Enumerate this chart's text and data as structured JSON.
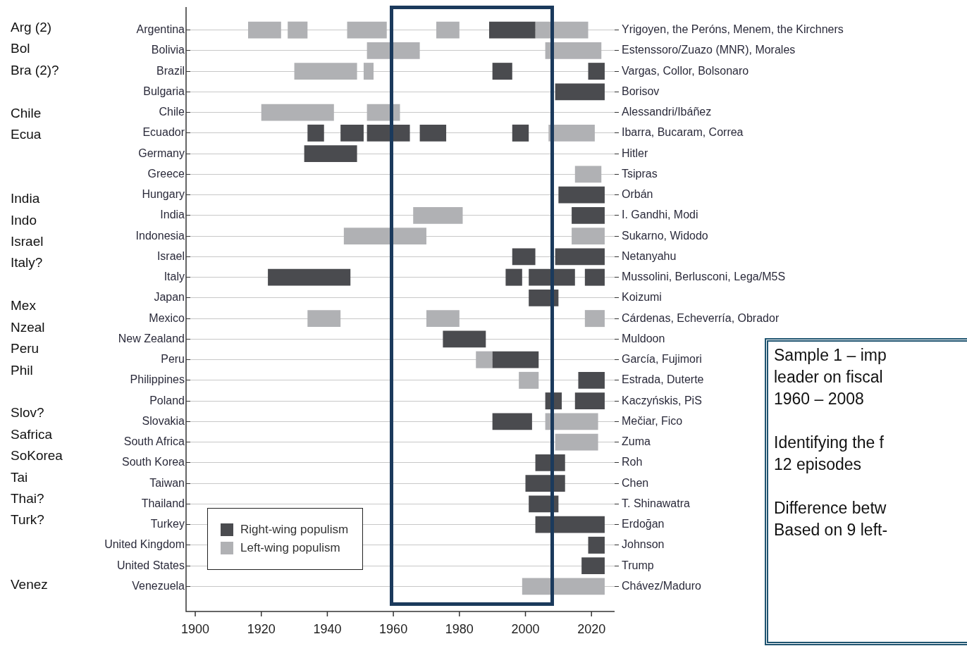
{
  "chart_data": {
    "type": "bar",
    "orientation": "horizontal",
    "grid": "y",
    "legend": "bottom left",
    "categories": [
      "Argentina",
      "Bolivia",
      "Brazil",
      "Bulgaria",
      "Chile",
      "Ecuador",
      "Germany",
      "Greece",
      "Hungary",
      "India",
      "Indonesia",
      "Israel",
      "Italy",
      "Japan",
      "Mexico",
      "New Zealand",
      "Peru",
      "Philippines",
      "Poland",
      "Slovakia",
      "South Africa",
      "South Korea",
      "Taiwan",
      "Thailand",
      "Turkey",
      "United Kingdom",
      "United States",
      "Venezuela"
    ],
    "y2_categories": [
      "Yrigoyen, the Peróns, Menem, the Kirchners",
      "Estenssoro/Zuazo (MNR), Morales",
      "Vargas, Collor, Bolsonaro",
      "Borisov",
      "Alessandri/Ibáñez",
      "Ibarra, Bucaram, Correa",
      "Hitler",
      "Tsipras",
      "Orbán",
      "I. Gandhi, Modi",
      "Sukarno, Widodo",
      "Netanyahu",
      "Mussolini, Berlusconi, Lega/M5S",
      "Koizumi",
      "Cárdenas, Echeverría, Obrador",
      "Muldoon",
      "García, Fujimori",
      "Estrada, Duterte",
      "Kaczyńskis, PiS",
      "Mečiar, Fico",
      "Zuma",
      "Roh",
      "Chen",
      "T. Shinawatra",
      "Erdoğan",
      "Johnson",
      "Trump",
      "Chávez/Maduro"
    ],
    "xlim": [
      1898.5,
      2027
    ],
    "xticks": [
      1900,
      1920,
      1940,
      1960,
      1980,
      2000,
      2020
    ],
    "series": [
      {
        "name": "Right-wing populism",
        "color": "#4a4b4f",
        "base": [
          1989,
          null,
          1990,
          2009,
          null,
          1934,
          1933,
          null,
          2010,
          2014,
          null,
          1996,
          1922,
          2001,
          null,
          1975,
          1990,
          2016,
          2006,
          1990,
          null,
          2003,
          2000,
          2001,
          2003,
          2019,
          2017,
          null
        ],
        "values": [
          14,
          null,
          6,
          15,
          null,
          5,
          16,
          null,
          14,
          10,
          null,
          7,
          25,
          9,
          null,
          13,
          14,
          8,
          5,
          12,
          null,
          9,
          12,
          9,
          21,
          5,
          7,
          null
        ]
      },
      {
        "color": "#4a4b4f",
        "base": [
          null,
          null,
          2019,
          null,
          null,
          1944,
          null,
          null,
          null,
          null,
          null,
          2009,
          1994,
          null,
          null,
          null,
          null,
          null,
          2015,
          null,
          null,
          null,
          null,
          null,
          null,
          null,
          null,
          null
        ],
        "values": [
          null,
          null,
          5,
          null,
          null,
          7,
          null,
          null,
          null,
          null,
          null,
          15,
          5,
          null,
          null,
          null,
          null,
          null,
          9,
          null,
          null,
          null,
          null,
          null,
          null,
          null,
          null,
          null
        ]
      },
      {
        "color": "#4a4b4f",
        "base": [
          null,
          null,
          null,
          null,
          null,
          1952,
          null,
          null,
          null,
          null,
          null,
          null,
          2001,
          null,
          null,
          null,
          null,
          null,
          null,
          null,
          null,
          null,
          null,
          null,
          null,
          null,
          null,
          null
        ],
        "values": [
          null,
          null,
          null,
          null,
          null,
          13,
          null,
          null,
          null,
          null,
          null,
          null,
          14,
          null,
          null,
          null,
          null,
          null,
          null,
          null,
          null,
          null,
          null,
          null,
          null,
          null,
          null,
          null
        ]
      },
      {
        "color": "#4a4b4f",
        "base": [
          null,
          null,
          null,
          null,
          null,
          1968,
          null,
          null,
          null,
          null,
          null,
          null,
          2018,
          null,
          null,
          null,
          null,
          null,
          null,
          null,
          null,
          null,
          null,
          null,
          null,
          null,
          null,
          null
        ],
        "values": [
          null,
          null,
          null,
          null,
          null,
          8,
          null,
          null,
          null,
          null,
          null,
          null,
          6,
          null,
          null,
          null,
          null,
          null,
          null,
          null,
          null,
          null,
          null,
          null,
          null,
          null,
          null,
          null
        ]
      },
      {
        "color": "#4a4b4f",
        "base": [
          null,
          null,
          null,
          null,
          null,
          1996,
          null,
          null,
          null,
          null,
          null,
          null,
          null,
          null,
          null,
          null,
          null,
          null,
          null,
          null,
          null,
          null,
          null,
          null,
          null,
          null,
          null,
          null
        ],
        "values": [
          null,
          null,
          null,
          null,
          null,
          5,
          null,
          null,
          null,
          null,
          null,
          null,
          null,
          null,
          null,
          null,
          null,
          null,
          null,
          null,
          null,
          null,
          null,
          null,
          null,
          null,
          null,
          null
        ]
      },
      {
        "name": "Left-wing populism",
        "color": "#b0b1b4",
        "base": [
          1916,
          1952,
          1930,
          null,
          1920,
          2007,
          null,
          2015,
          null,
          1966,
          1945,
          null,
          null,
          null,
          1934,
          null,
          1985,
          1998,
          null,
          2006,
          2009,
          null,
          null,
          null,
          null,
          null,
          null,
          1999
        ],
        "values": [
          10,
          16,
          19,
          null,
          22,
          14,
          null,
          8,
          null,
          15,
          25,
          null,
          null,
          null,
          10,
          null,
          5,
          6,
          null,
          16,
          13,
          null,
          null,
          null,
          null,
          null,
          null,
          25
        ]
      },
      {
        "color": "#b0b1b4",
        "base": [
          1928,
          2006,
          1951,
          null,
          1952,
          null,
          null,
          null,
          null,
          null,
          2014,
          null,
          null,
          null,
          1970,
          null,
          null,
          null,
          null,
          null,
          null,
          null,
          null,
          null,
          null,
          null,
          null,
          null
        ],
        "values": [
          6,
          17,
          3,
          null,
          10,
          null,
          null,
          null,
          null,
          null,
          10,
          null,
          null,
          null,
          10,
          null,
          null,
          null,
          null,
          null,
          null,
          null,
          null,
          null,
          null,
          null,
          null,
          null
        ]
      },
      {
        "color": "#b0b1b4",
        "base": [
          1946,
          null,
          null,
          null,
          null,
          null,
          null,
          null,
          null,
          null,
          null,
          null,
          null,
          null,
          2018,
          null,
          null,
          null,
          null,
          null,
          null,
          null,
          null,
          null,
          null,
          null,
          null,
          null
        ],
        "values": [
          12,
          null,
          null,
          null,
          null,
          null,
          null,
          null,
          null,
          null,
          null,
          null,
          null,
          null,
          6,
          null,
          null,
          null,
          null,
          null,
          null,
          null,
          null,
          null,
          null,
          null,
          null,
          null
        ]
      },
      {
        "color": "#b0b1b4",
        "base": [
          1973,
          null,
          null,
          null,
          null,
          null,
          null,
          null,
          null,
          null,
          null,
          null,
          null,
          null,
          null,
          null,
          null,
          null,
          null,
          null,
          null,
          null,
          null,
          null,
          null,
          null,
          null,
          null
        ],
        "values": [
          7,
          null,
          null,
          null,
          null,
          null,
          null,
          null,
          null,
          null,
          null,
          null,
          null,
          null,
          null,
          null,
          null,
          null,
          null,
          null,
          null,
          null,
          null,
          null,
          null,
          null,
          null,
          null
        ]
      },
      {
        "color": "#b0b1b4",
        "base": [
          2003,
          null,
          null,
          null,
          null,
          null,
          null,
          null,
          null,
          null,
          null,
          null,
          null,
          null,
          null,
          null,
          null,
          null,
          null,
          null,
          null,
          null,
          null,
          null,
          null,
          null,
          null,
          null
        ],
        "values": [
          16,
          null,
          null,
          null,
          null,
          null,
          null,
          null,
          null,
          null,
          null,
          null,
          null,
          null,
          null,
          null,
          null,
          null,
          null,
          null,
          null,
          null,
          null,
          null,
          null,
          null,
          null,
          null
        ]
      }
    ],
    "annotations": [
      "Arg (2)\nBol\nBra (2)?\n\nChile\nEcua\n\n\nIndia\nIndo\nIsrael\nItaly?\n\nMex\nNzeal\nPeru\nPhil\n\nSlov?\nSafrica\nSoKorea\nTai\nThai?\nTurk?\n\n\nVenez",
      "Sample 1 – imp\nleader on fiscal\n1960 – 2008",
      "Identifying the f\n12 episodes",
      "Difference betw\nBased on 9 left-"
    ]
  }
}
